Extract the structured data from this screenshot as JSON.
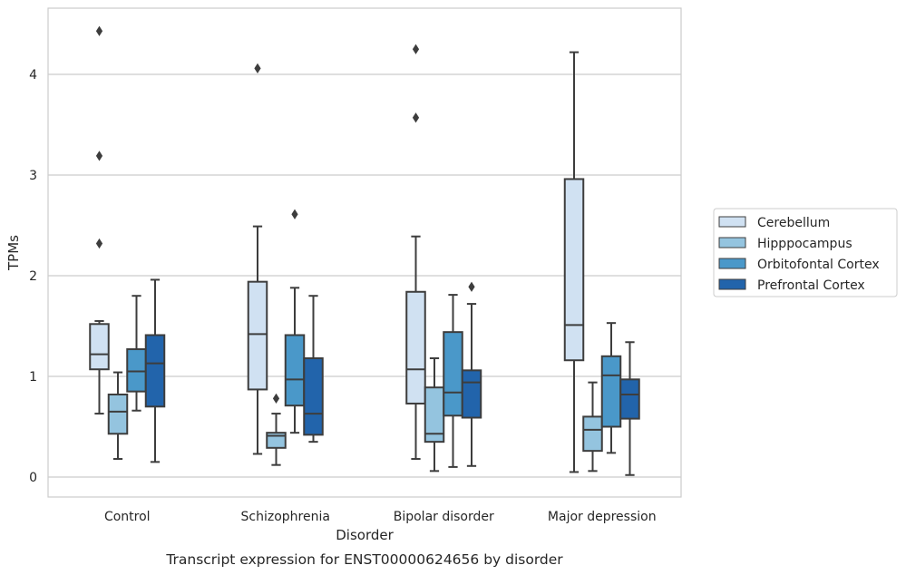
{
  "chart_data": {
    "type": "box",
    "caption": "Transcript expression for ENST00000624656 by disorder",
    "xlabel": "Disorder",
    "ylabel": "TPMs",
    "ylim": [
      -0.18,
      4.65
    ],
    "yticks": [
      0,
      1,
      2,
      3,
      4
    ],
    "grid": "horizontal",
    "legend_position": "right",
    "categories": [
      "Control",
      "Schizophrenia",
      "Bipolar disorder",
      "Major depression"
    ],
    "series": [
      {
        "name": "Cerebellum",
        "color": "#d0e1f2",
        "boxes": [
          {
            "whislo": 0.63,
            "q1": 1.07,
            "med": 1.22,
            "q3": 1.52,
            "whishi": 1.55,
            "fliers": [
              2.32,
              3.19,
              4.43
            ]
          },
          {
            "whislo": 0.23,
            "q1": 0.87,
            "med": 1.42,
            "q3": 1.94,
            "whishi": 2.49,
            "fliers": [
              4.06
            ]
          },
          {
            "whislo": 0.18,
            "q1": 0.73,
            "med": 1.07,
            "q3": 1.84,
            "whishi": 2.39,
            "fliers": [
              3.57,
              4.25
            ]
          },
          {
            "whislo": 0.05,
            "q1": 1.16,
            "med": 1.51,
            "q3": 2.96,
            "whishi": 4.22,
            "fliers": []
          }
        ]
      },
      {
        "name": "Hipppocampus",
        "color": "#94c4df",
        "boxes": [
          {
            "whislo": 0.18,
            "q1": 0.43,
            "med": 0.65,
            "q3": 0.82,
            "whishi": 1.04,
            "fliers": []
          },
          {
            "whislo": 0.12,
            "q1": 0.29,
            "med": 0.41,
            "q3": 0.44,
            "whishi": 0.63,
            "fliers": [
              0.78
            ]
          },
          {
            "whislo": 0.06,
            "q1": 0.35,
            "med": 0.43,
            "q3": 0.89,
            "whishi": 1.18,
            "fliers": []
          },
          {
            "whislo": 0.06,
            "q1": 0.26,
            "med": 0.47,
            "q3": 0.6,
            "whishi": 0.94,
            "fliers": []
          }
        ]
      },
      {
        "name": "Orbitofontal Cortex",
        "color": "#4a98c9",
        "boxes": [
          {
            "whislo": 0.66,
            "q1": 0.85,
            "med": 1.05,
            "q3": 1.27,
            "whishi": 1.8,
            "fliers": []
          },
          {
            "whislo": 0.44,
            "q1": 0.71,
            "med": 0.97,
            "q3": 1.41,
            "whishi": 1.88,
            "fliers": [
              2.61
            ]
          },
          {
            "whislo": 0.1,
            "q1": 0.61,
            "med": 0.84,
            "q3": 1.44,
            "whishi": 1.81,
            "fliers": []
          },
          {
            "whislo": 0.24,
            "q1": 0.5,
            "med": 1.01,
            "q3": 1.2,
            "whishi": 1.53,
            "fliers": []
          }
        ]
      },
      {
        "name": "Prefrontal Cortex",
        "color": "#2264ab",
        "boxes": [
          {
            "whislo": 0.15,
            "q1": 0.7,
            "med": 1.13,
            "q3": 1.41,
            "whishi": 1.96,
            "fliers": []
          },
          {
            "whislo": 0.35,
            "q1": 0.42,
            "med": 0.63,
            "q3": 1.18,
            "whishi": 1.8,
            "fliers": []
          },
          {
            "whislo": 0.11,
            "q1": 0.59,
            "med": 0.94,
            "q3": 1.06,
            "whishi": 1.72,
            "fliers": [
              1.89
            ]
          },
          {
            "whislo": 0.02,
            "q1": 0.58,
            "med": 0.82,
            "q3": 0.97,
            "whishi": 1.34,
            "fliers": []
          }
        ]
      }
    ]
  }
}
